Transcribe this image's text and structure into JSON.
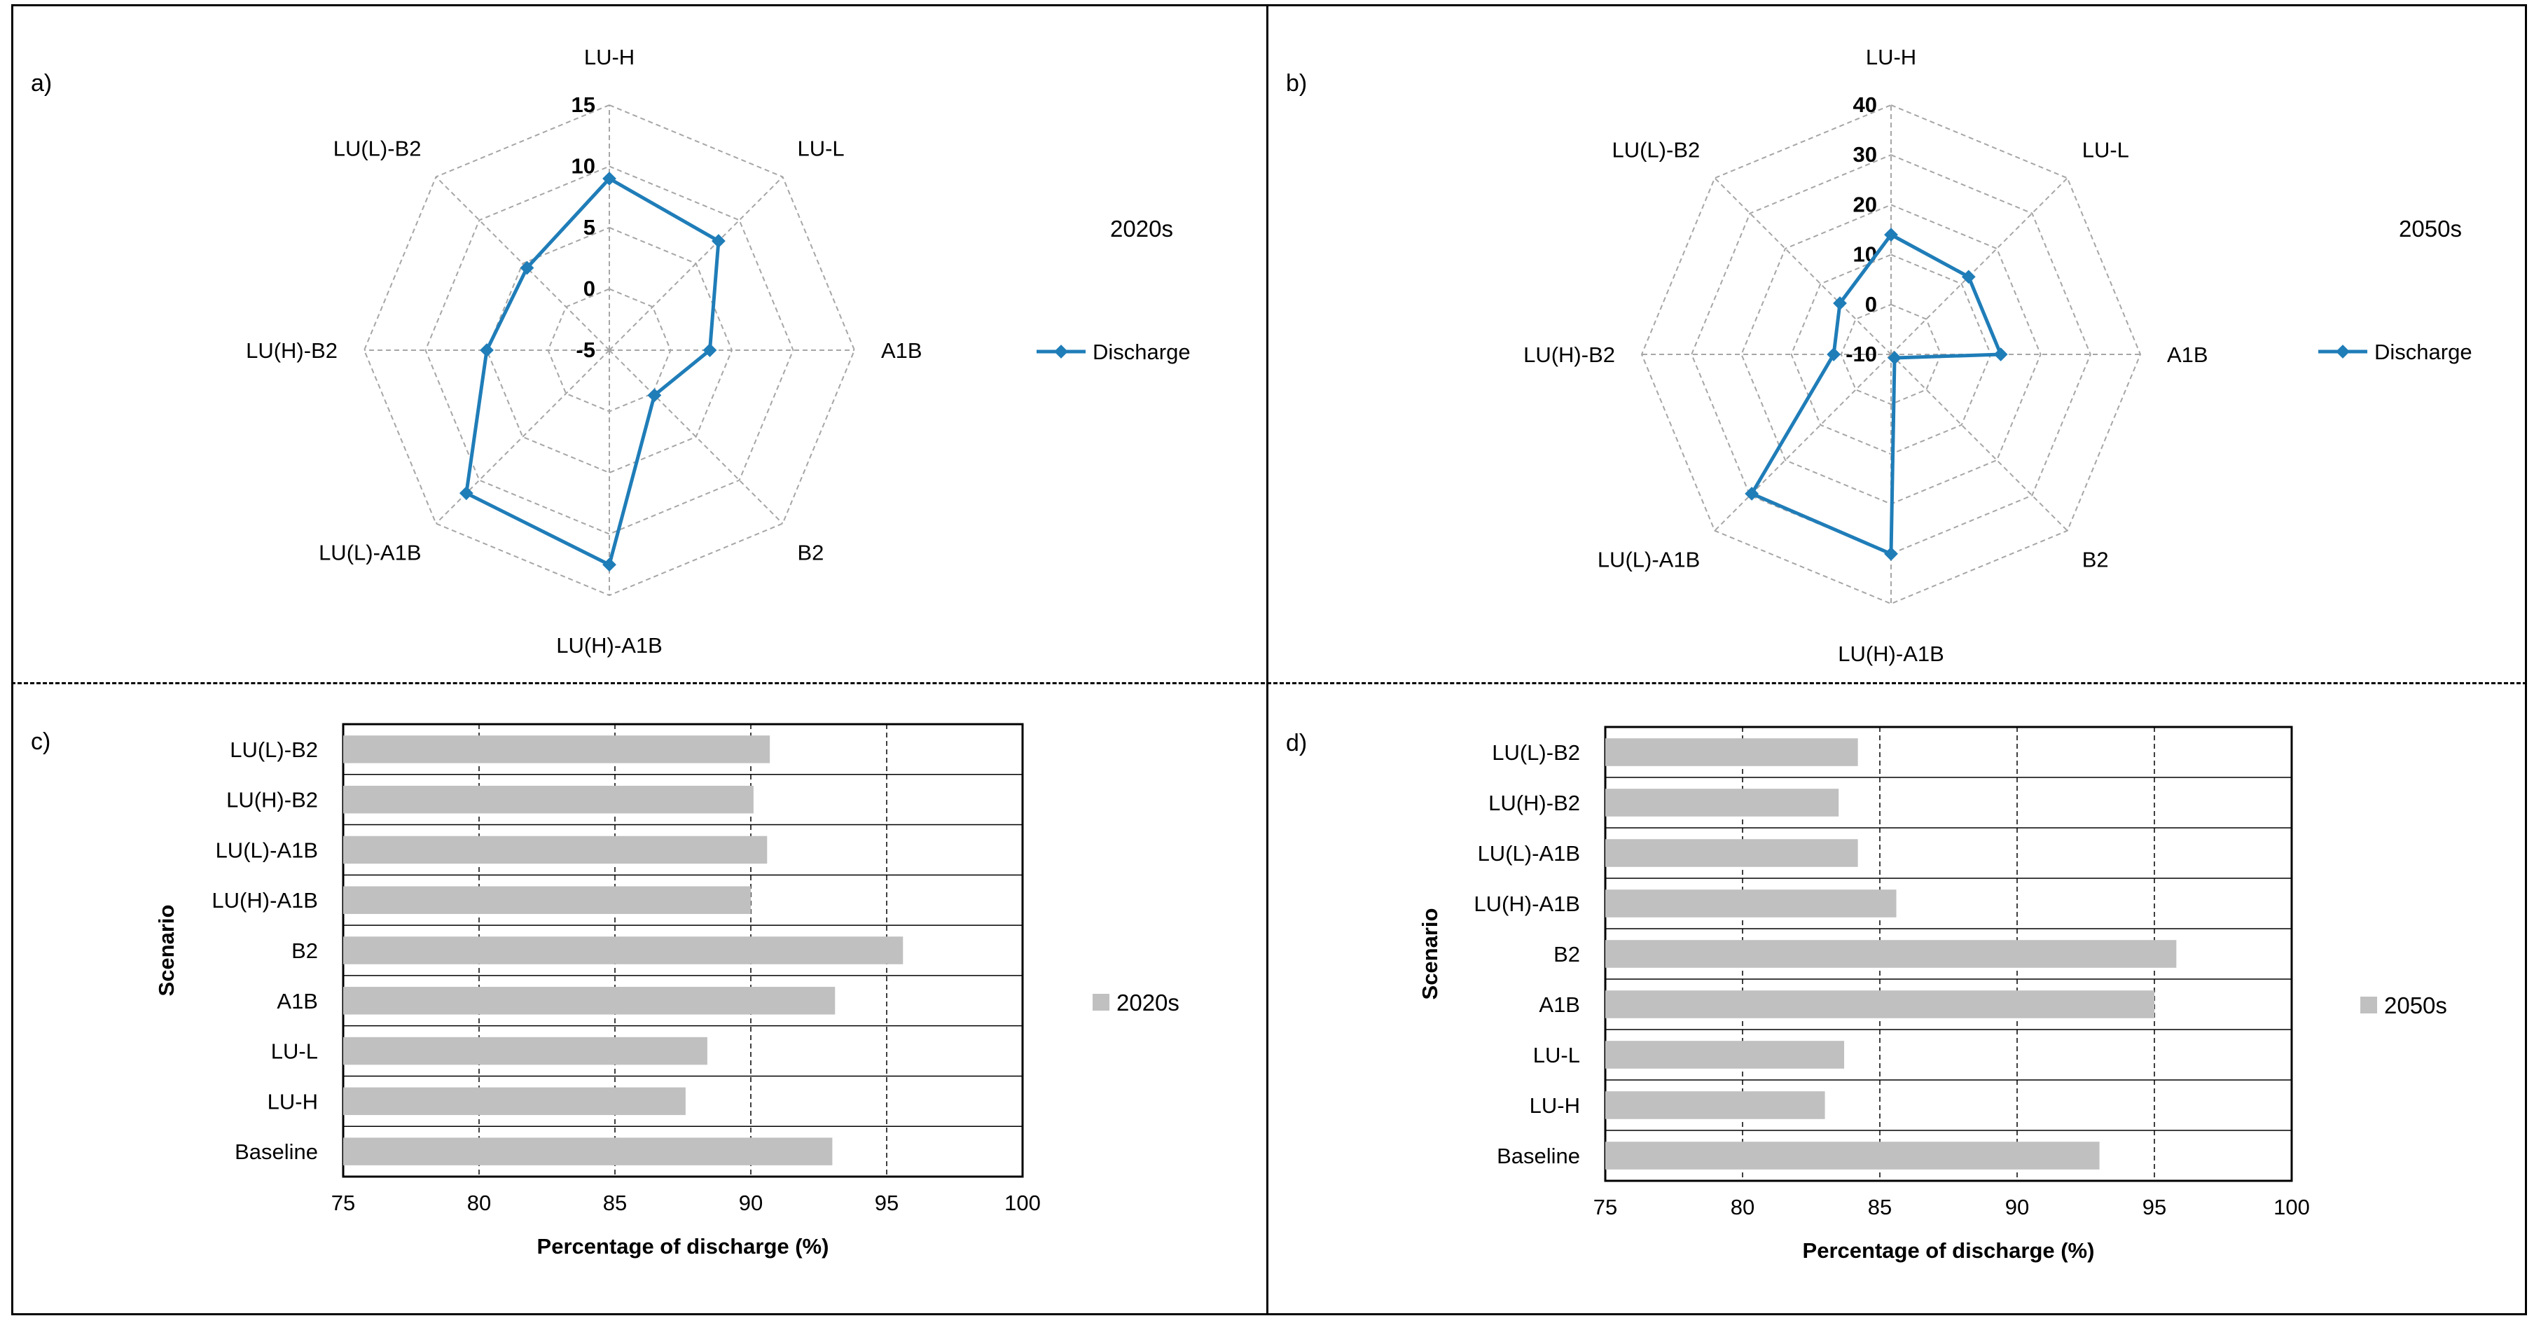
{
  "panels": [
    {
      "letter": "a)"
    },
    {
      "letter": "b)"
    },
    {
      "letter": "c)"
    },
    {
      "letter": "d)"
    }
  ],
  "chart_data": [
    {
      "type": "radar",
      "panel": "a)",
      "axes": [
        "LU-H",
        "LU-L",
        "A1B",
        "B2",
        "LU(H)-A1B",
        "LU(L)-A1B",
        "LU(H)-B2",
        "LU(L)-B2"
      ],
      "rmin": -5,
      "rmax": 15,
      "ticks": [
        -5,
        0,
        5,
        10,
        15
      ],
      "tick_labels": [
        "-5",
        "0",
        "5",
        "10",
        "15"
      ],
      "series": [
        {
          "name": "Discharge",
          "values": [
            9,
            7.6,
            3.2,
            0.2,
            12.5,
            11.5,
            5,
            4.5
          ]
        }
      ],
      "legend_label": "Discharge",
      "period_label": "2020s",
      "line_color": "#1f7db8"
    },
    {
      "type": "radar",
      "panel": "b)",
      "axes": [
        "LU-H",
        "LU-L",
        "A1B",
        "B2",
        "LU(H)-A1B",
        "LU(L)-A1B",
        "LU(H)-B2",
        "LU(L)-B2"
      ],
      "rmin": -10,
      "rmax": 40,
      "ticks": [
        -10,
        0,
        10,
        20,
        30,
        40
      ],
      "tick_labels": [
        "-10",
        "0",
        "10",
        "20",
        "30",
        "40"
      ],
      "series": [
        {
          "name": "Discharge",
          "values": [
            14,
            12,
            12,
            -9,
            30,
            29.5,
            1.5,
            4.5
          ]
        }
      ],
      "legend_label": "Discharge",
      "period_label": "2050s",
      "line_color": "#1f7db8"
    },
    {
      "type": "bar",
      "orientation": "horizontal",
      "panel": "c)",
      "categories": [
        "LU(L)-B2",
        "LU(H)-B2",
        "LU(L)-A1B",
        "LU(H)-A1B",
        "B2",
        "A1B",
        "LU-L",
        "LU-H",
        "Baseline"
      ],
      "values": [
        90.7,
        90.1,
        90.6,
        90.0,
        95.6,
        93.1,
        88.4,
        87.6,
        93.0
      ],
      "xlim": [
        75,
        100
      ],
      "xticks": [
        "75",
        "80",
        "85",
        "90",
        "95",
        "100"
      ],
      "xlabel": "Percentage of discharge (%)",
      "ylabel": "Scenario",
      "legend_label": "2020s",
      "bar_color": "#c0c0c0"
    },
    {
      "type": "bar",
      "orientation": "horizontal",
      "panel": "d)",
      "categories": [
        "LU(L)-B2",
        "LU(H)-B2",
        "LU(L)-A1B",
        "LU(H)-A1B",
        "B2",
        "A1B",
        "LU-L",
        "LU-H",
        "Baseline"
      ],
      "values": [
        84.2,
        83.5,
        84.2,
        85.6,
        95.8,
        95.0,
        83.7,
        83.0,
        93.0
      ],
      "xlim": [
        75,
        100
      ],
      "xticks": [
        "75",
        "80",
        "85",
        "90",
        "95",
        "100"
      ],
      "xlabel": "Percentage of discharge (%)",
      "ylabel": "Scenario",
      "legend_label": "2050s",
      "bar_color": "#c0c0c0"
    }
  ]
}
